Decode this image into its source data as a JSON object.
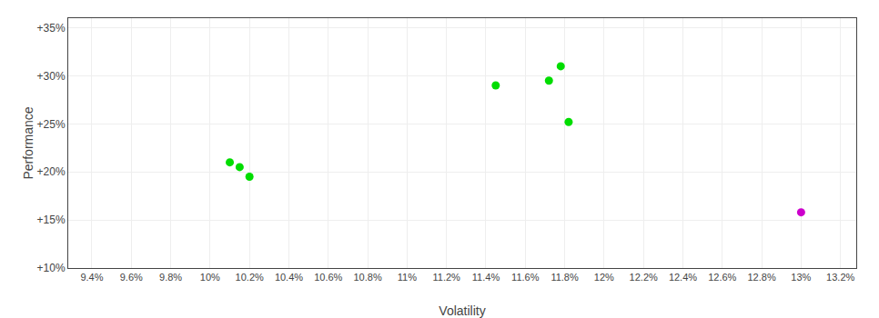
{
  "chart_data": {
    "type": "scatter",
    "xlabel": "Volatility",
    "ylabel": "Performance",
    "marker": "circle",
    "grid": true,
    "series": [
      {
        "color": "#00dd00",
        "x": [
          10.1,
          10.15,
          10.2
        ],
        "values": [
          21.0,
          20.5,
          19.5
        ]
      },
      {
        "color": "#00dd00",
        "x": [
          11.45,
          11.72,
          11.78,
          11.82
        ],
        "values": [
          29.0,
          29.5,
          31.0,
          25.2
        ]
      },
      {
        "color": "#cc00cc",
        "x": [
          13.0
        ],
        "values": [
          15.8
        ]
      }
    ],
    "xlim": [
      9.28,
      13.28
    ],
    "ylim": [
      10.0,
      36.0
    ],
    "xticks": [
      {
        "value": 9.4,
        "label": "9.4%"
      },
      {
        "value": 9.6,
        "label": "9.6%"
      },
      {
        "value": 9.8,
        "label": "9.8%"
      },
      {
        "value": 10.0,
        "label": "10%"
      },
      {
        "value": 10.2,
        "label": "10.2%"
      },
      {
        "value": 10.4,
        "label": "10.4%"
      },
      {
        "value": 10.6,
        "label": "10.6%"
      },
      {
        "value": 10.8,
        "label": "10.8%"
      },
      {
        "value": 11.0,
        "label": "11%"
      },
      {
        "value": 11.2,
        "label": "11.2%"
      },
      {
        "value": 11.4,
        "label": "11.4%"
      },
      {
        "value": 11.6,
        "label": "11.6%"
      },
      {
        "value": 11.8,
        "label": "11.8%"
      },
      {
        "value": 12.0,
        "label": "12%"
      },
      {
        "value": 12.2,
        "label": "12.2%"
      },
      {
        "value": 12.4,
        "label": "12.4%"
      },
      {
        "value": 12.6,
        "label": "12.6%"
      },
      {
        "value": 12.8,
        "label": "12.8%"
      },
      {
        "value": 13.0,
        "label": "13%"
      },
      {
        "value": 13.2,
        "label": "13.2%"
      }
    ],
    "yticks": [
      {
        "value": 10,
        "label": "+10%"
      },
      {
        "value": 15,
        "label": "+15%"
      },
      {
        "value": 20,
        "label": "+20%"
      },
      {
        "value": 25,
        "label": "+25%"
      },
      {
        "value": 30,
        "label": "+30%"
      },
      {
        "value": 35,
        "label": "+35%"
      }
    ]
  }
}
